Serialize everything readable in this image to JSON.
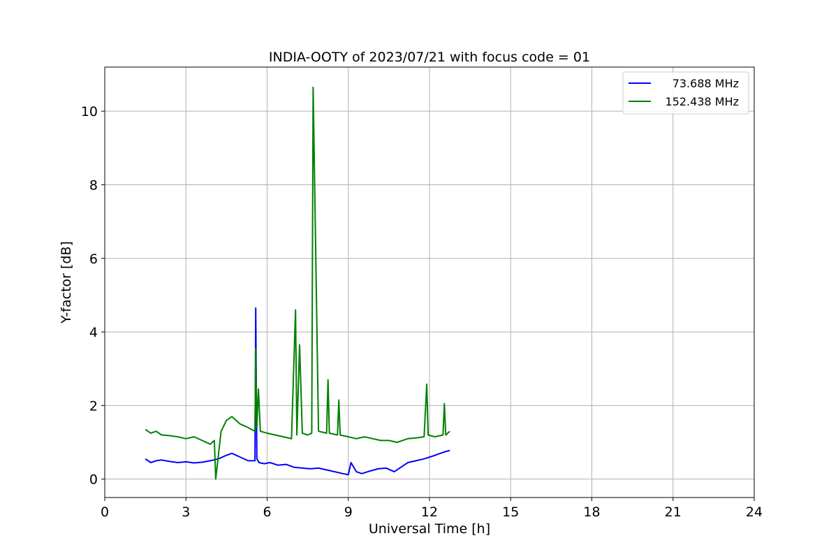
{
  "chart_data": {
    "type": "line",
    "title": "INDIA-OOTY of 2023/07/21 with focus code = 01",
    "xlabel": "Universal Time [h]",
    "ylabel": "Y-factor [dB]",
    "xlim": [
      0,
      24
    ],
    "ylim": [
      -0.5,
      11.2
    ],
    "xticks": [
      0,
      3,
      6,
      9,
      12,
      15,
      18,
      21,
      24
    ],
    "yticks": [
      0,
      2,
      4,
      6,
      8,
      10
    ],
    "grid": true,
    "legend_position": "top-right",
    "series": [
      {
        "name": "73.688 MHz",
        "color": "#0000ff",
        "x": [
          1.5,
          1.7,
          1.9,
          2.1,
          2.4,
          2.7,
          3.0,
          3.3,
          3.6,
          3.9,
          4.2,
          4.5,
          4.7,
          5.0,
          5.3,
          5.55,
          5.58,
          5.62,
          5.7,
          5.9,
          6.1,
          6.4,
          6.7,
          7.0,
          7.3,
          7.6,
          7.9,
          8.2,
          8.5,
          8.8,
          9.0,
          9.1,
          9.3,
          9.5,
          9.8,
          10.1,
          10.4,
          10.7,
          11.0,
          11.2,
          11.5,
          11.8,
          12.1,
          12.4,
          12.6,
          12.75
        ],
        "y": [
          0.55,
          0.45,
          0.5,
          0.52,
          0.48,
          0.45,
          0.47,
          0.44,
          0.46,
          0.5,
          0.55,
          0.65,
          0.7,
          0.6,
          0.5,
          0.5,
          4.65,
          0.55,
          0.45,
          0.42,
          0.45,
          0.38,
          0.4,
          0.32,
          0.3,
          0.28,
          0.3,
          0.25,
          0.2,
          0.15,
          0.12,
          0.45,
          0.2,
          0.15,
          0.22,
          0.28,
          0.3,
          0.2,
          0.35,
          0.45,
          0.5,
          0.55,
          0.62,
          0.7,
          0.75,
          0.78
        ]
      },
      {
        "name": "152.438 MHz",
        "color": "#008000",
        "x": [
          1.5,
          1.7,
          1.9,
          2.1,
          2.4,
          2.7,
          3.0,
          3.3,
          3.6,
          3.9,
          4.05,
          4.1,
          4.3,
          4.5,
          4.7,
          5.0,
          5.3,
          5.55,
          5.58,
          5.62,
          5.68,
          5.75,
          6.0,
          6.3,
          6.6,
          6.9,
          7.05,
          7.1,
          7.2,
          7.3,
          7.5,
          7.65,
          7.7,
          7.9,
          8.2,
          8.25,
          8.3,
          8.6,
          8.65,
          8.7,
          9.0,
          9.3,
          9.6,
          9.9,
          10.2,
          10.5,
          10.8,
          11.0,
          11.2,
          11.5,
          11.8,
          11.9,
          11.95,
          12.2,
          12.5,
          12.55,
          12.6,
          12.75
        ],
        "y": [
          1.35,
          1.25,
          1.3,
          1.2,
          1.18,
          1.15,
          1.1,
          1.15,
          1.05,
          0.95,
          1.05,
          0.0,
          1.3,
          1.6,
          1.7,
          1.5,
          1.4,
          1.3,
          3.55,
          1.4,
          2.45,
          1.3,
          1.25,
          1.2,
          1.15,
          1.1,
          4.6,
          1.2,
          3.65,
          1.25,
          1.2,
          1.25,
          10.65,
          1.3,
          1.25,
          2.7,
          1.25,
          1.2,
          2.15,
          1.2,
          1.15,
          1.1,
          1.15,
          1.1,
          1.05,
          1.05,
          1.0,
          1.05,
          1.1,
          1.12,
          1.15,
          2.58,
          1.2,
          1.15,
          1.2,
          2.05,
          1.2,
          1.3
        ]
      }
    ]
  }
}
